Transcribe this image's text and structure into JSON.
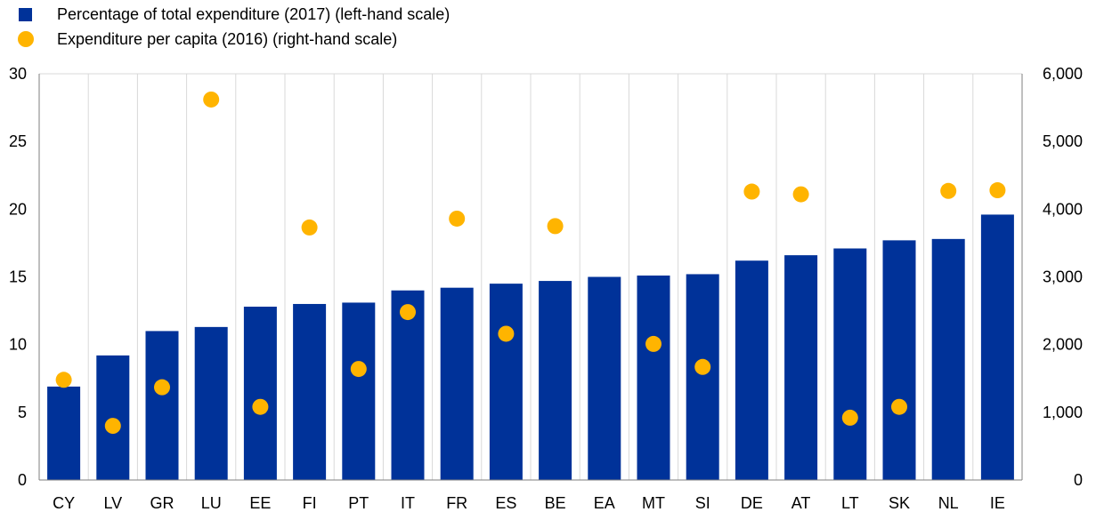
{
  "chart_data": {
    "type": "bar",
    "categories": [
      "CY",
      "LV",
      "GR",
      "LU",
      "EE",
      "FI",
      "PT",
      "IT",
      "FR",
      "ES",
      "BE",
      "EA",
      "MT",
      "SI",
      "DE",
      "AT",
      "LT",
      "SK",
      "NL",
      "IE"
    ],
    "series": [
      {
        "name": "Percentage of total expenditure (2017) (left-hand scale)",
        "type": "bar",
        "axis": "left",
        "color": "#003299",
        "values": [
          6.9,
          9.2,
          11.0,
          11.3,
          12.8,
          13.0,
          13.1,
          14.0,
          14.2,
          14.5,
          14.7,
          15.0,
          15.1,
          15.2,
          16.2,
          16.6,
          17.1,
          17.7,
          17.8,
          19.6
        ]
      },
      {
        "name": "Expenditure per capita (2016) (right-hand scale)",
        "type": "scatter",
        "axis": "right",
        "color": "#ffb400",
        "values": [
          1480,
          800,
          1370,
          5620,
          1080,
          3730,
          1640,
          2480,
          3860,
          2160,
          3750,
          null,
          2010,
          1670,
          4260,
          4220,
          920,
          1080,
          4270,
          4280
        ]
      }
    ],
    "y_left": {
      "ylim": [
        0,
        30
      ],
      "ticks": [
        "0",
        "5",
        "10",
        "15",
        "20",
        "25",
        "30"
      ]
    },
    "y_right": {
      "ylim": [
        0,
        6000
      ],
      "ticks": [
        "0",
        "1,000",
        "2,000",
        "3,000",
        "4,000",
        "5,000",
        "6,000"
      ]
    },
    "grid": "vertical",
    "legend_position": "top-left"
  }
}
